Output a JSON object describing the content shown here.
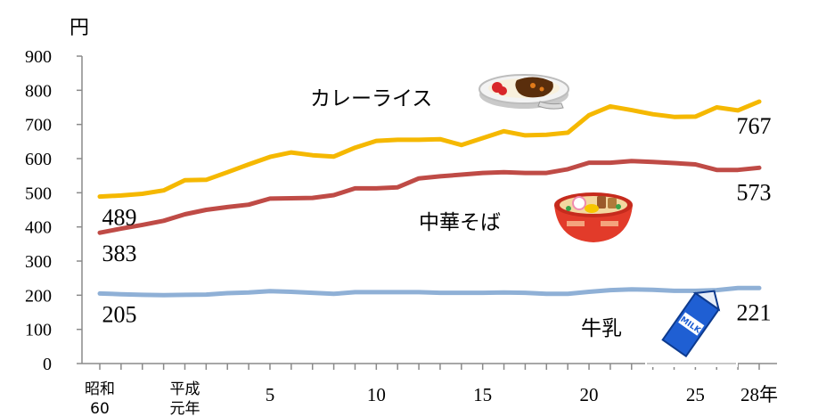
{
  "chart_data": {
    "type": "line",
    "unit_label": "円",
    "ylim": [
      0,
      900
    ],
    "yticks": [
      "0",
      "100",
      "200",
      "300",
      "400",
      "500",
      "600",
      "700",
      "800",
      "900"
    ],
    "x_tick_labels": [
      {
        "index": 0,
        "lines": [
          "昭和",
          "60"
        ],
        "style": "small"
      },
      {
        "index": 4,
        "lines": [
          "平成",
          "元年"
        ],
        "style": "small"
      },
      {
        "index": 8,
        "lines": [
          "5"
        ],
        "style": "num"
      },
      {
        "index": 13,
        "lines": [
          "10"
        ],
        "style": "num"
      },
      {
        "index": 18,
        "lines": [
          "15"
        ],
        "style": "num"
      },
      {
        "index": 23,
        "lines": [
          "20"
        ],
        "style": "num"
      },
      {
        "index": 28,
        "lines": [
          "25"
        ],
        "style": "num"
      },
      {
        "index": 31,
        "lines": [
          "28年"
        ],
        "style": "num"
      }
    ],
    "x": [
      "昭和60",
      "61",
      "62",
      "63",
      "平成元年",
      "2",
      "3",
      "4",
      "5",
      "6",
      "7",
      "8",
      "9",
      "10",
      "11",
      "12",
      "13",
      "14",
      "15",
      "16",
      "17",
      "18",
      "19",
      "20",
      "21",
      "22",
      "23",
      "24",
      "25",
      "26",
      "27",
      "28"
    ],
    "series": [
      {
        "name": "カレーライス",
        "color": "#f5b800",
        "values": [
          489,
          492,
          497,
          507,
          537,
          538,
          560,
          583,
          605,
          618,
          610,
          606,
          632,
          652,
          655,
          655,
          657,
          640,
          660,
          680,
          668,
          670,
          676,
          727,
          753,
          742,
          730,
          722,
          723,
          750,
          741,
          767
        ]
      },
      {
        "name": "中華そば",
        "color": "#bf4b46",
        "values": [
          383,
          395,
          406,
          418,
          437,
          450,
          458,
          465,
          483,
          484,
          485,
          493,
          513,
          513,
          516,
          542,
          548,
          553,
          558,
          560,
          558,
          558,
          569,
          588,
          588,
          593,
          590,
          587,
          583,
          567,
          567,
          573
        ]
      },
      {
        "name": "牛乳",
        "color": "#8fb0d6",
        "values": [
          205,
          203,
          201,
          200,
          201,
          202,
          206,
          208,
          212,
          210,
          207,
          204,
          209,
          209,
          209,
          209,
          207,
          207,
          207,
          208,
          207,
          204,
          204,
          210,
          215,
          217,
          216,
          213,
          213,
          215,
          221,
          221
        ]
      }
    ],
    "data_labels": [
      {
        "series": 0,
        "point": "first",
        "text": "489"
      },
      {
        "series": 0,
        "point": "last",
        "text": "767"
      },
      {
        "series": 1,
        "point": "first",
        "text": "383"
      },
      {
        "series": 1,
        "point": "last",
        "text": "573"
      },
      {
        "series": 2,
        "point": "first",
        "text": "205"
      },
      {
        "series": 2,
        "point": "last",
        "text": "221"
      }
    ]
  },
  "series_labels": {
    "curry": "カレーライス",
    "ramen": "中華そば",
    "milk": "牛乳"
  },
  "icons": [
    "curry-plate-icon",
    "ramen-bowl-icon",
    "milk-carton-icon"
  ],
  "milk_icon_text": "MILK"
}
